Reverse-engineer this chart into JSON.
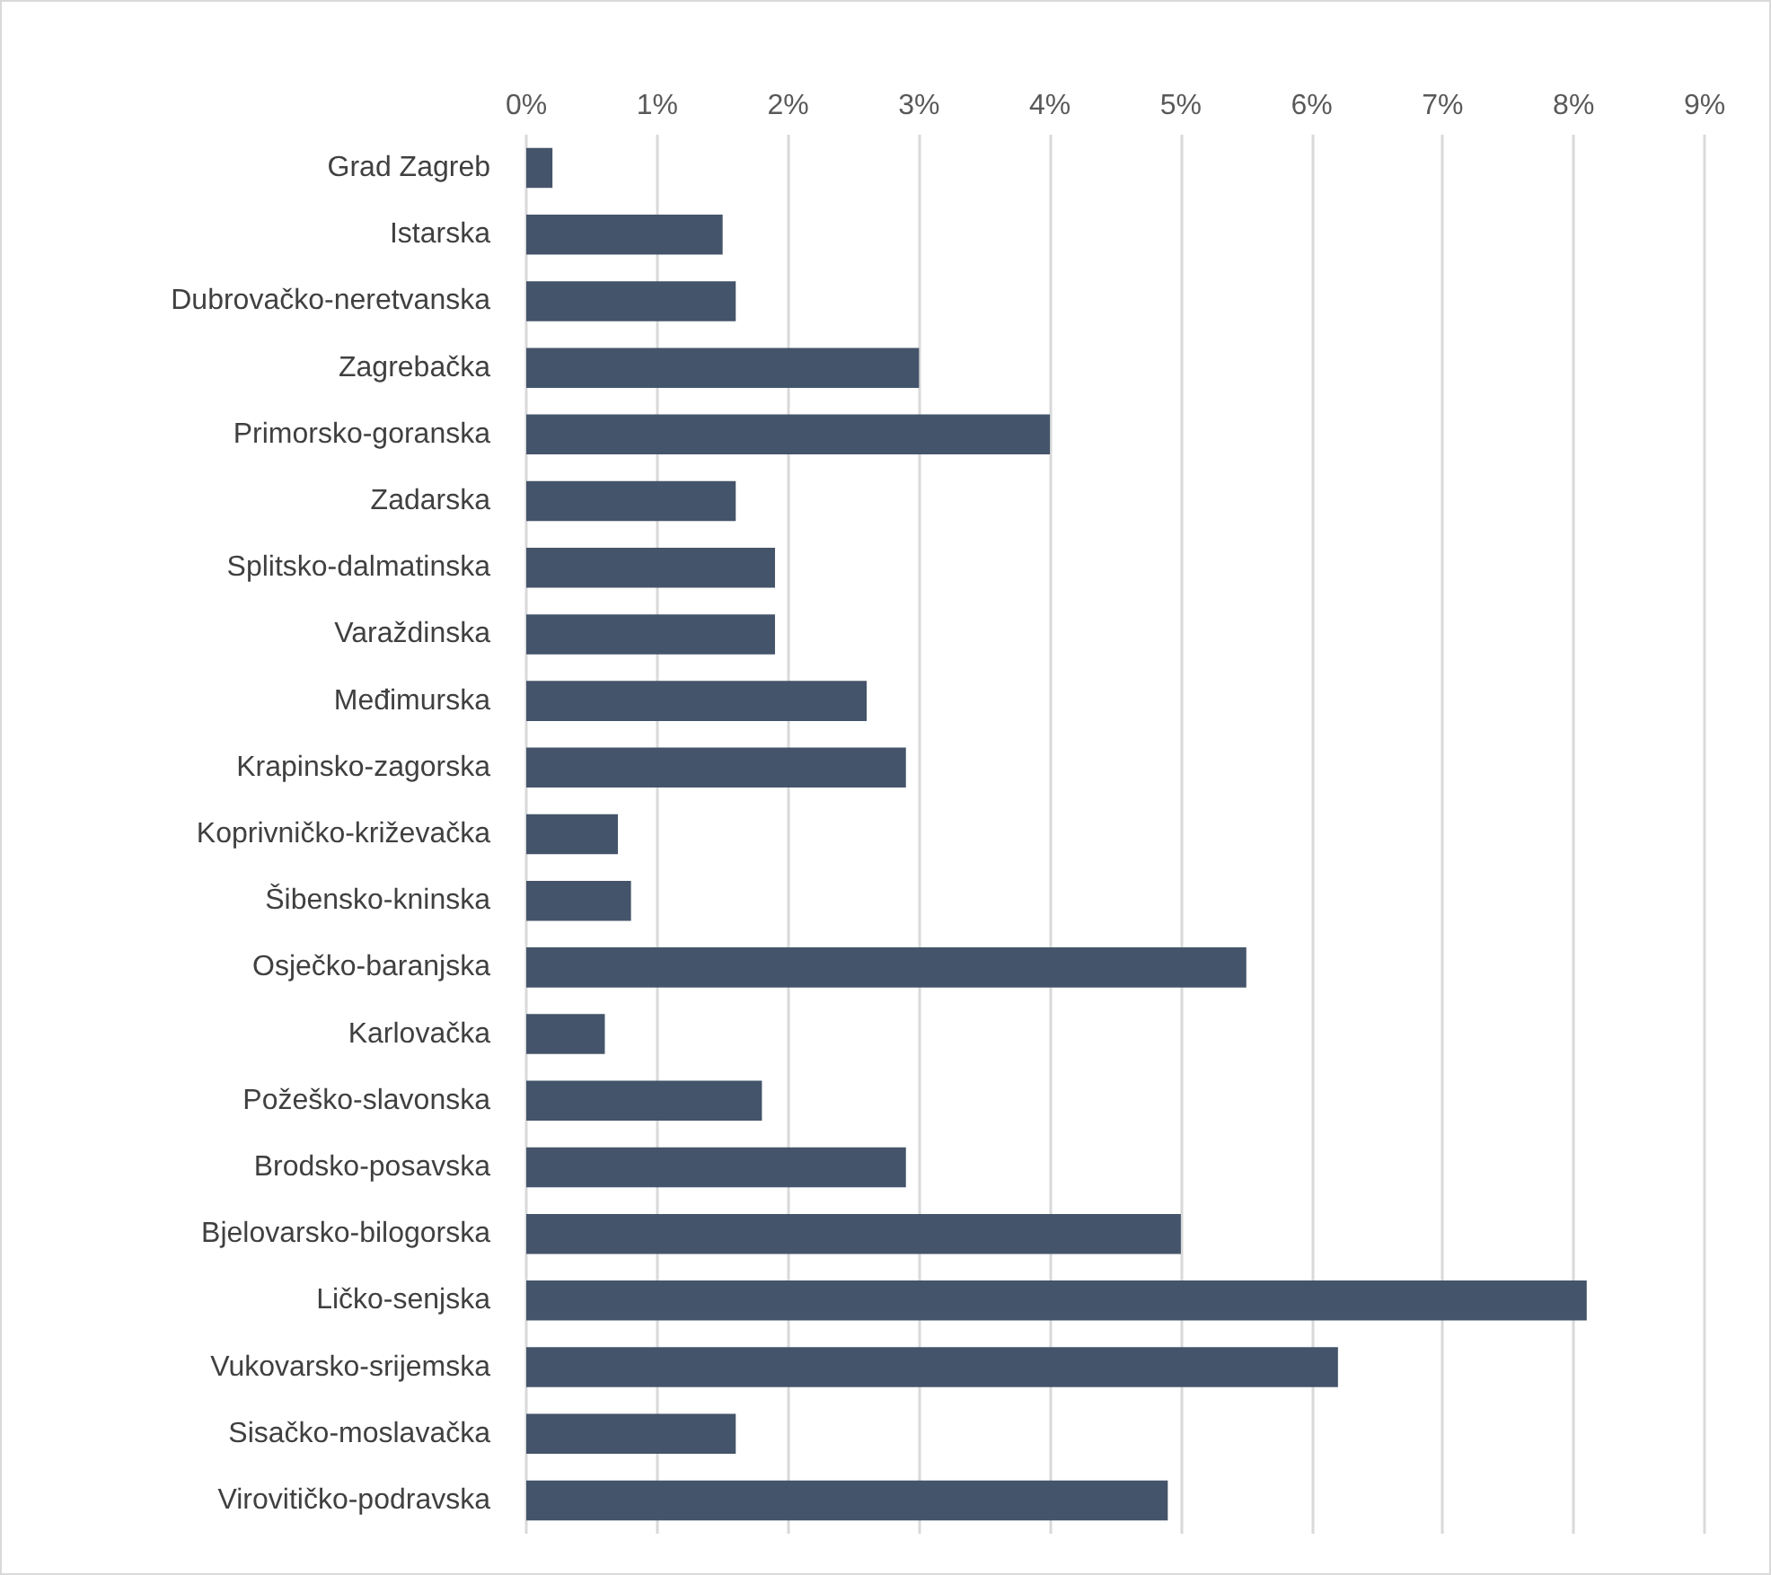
{
  "chart_data": {
    "type": "bar",
    "orientation": "horizontal",
    "categories": [
      "Grad Zagreb",
      "Istarska",
      "Dubrovačko-neretvanska",
      "Zagrebačka",
      "Primorsko-goranska",
      "Zadarska",
      "Splitsko-dalmatinska",
      "Varaždinska",
      "Međimurska",
      "Krapinsko-zagorska",
      "Koprivničko-križevačka",
      "Šibensko-kninska",
      "Osječko-baranjska",
      "Karlovačka",
      "Požeško-slavonska",
      "Brodsko-posavska",
      "Bjelovarsko-bilogorska",
      "Ličko-senjska",
      "Vukovarsko-srijemska",
      "Sisačko-moslavačka",
      "Virovitičko-podravska"
    ],
    "values": [
      0.2,
      1.5,
      1.6,
      3.0,
      4.0,
      1.6,
      1.9,
      1.9,
      2.6,
      2.9,
      0.7,
      0.8,
      5.5,
      0.6,
      1.8,
      2.9,
      5.0,
      8.1,
      6.2,
      1.6,
      4.9
    ],
    "color": "#44546a",
    "xlim": [
      0,
      9
    ],
    "xticks": [
      {
        "value": 0,
        "label": "0%"
      },
      {
        "value": 1,
        "label": "1%"
      },
      {
        "value": 2,
        "label": "2%"
      },
      {
        "value": 3,
        "label": "3%"
      },
      {
        "value": 4,
        "label": "4%"
      },
      {
        "value": 5,
        "label": "5%"
      },
      {
        "value": 6,
        "label": "6%"
      },
      {
        "value": 7,
        "label": "7%"
      },
      {
        "value": 8,
        "label": "8%"
      },
      {
        "value": 9,
        "label": "9%"
      }
    ],
    "grid": "x"
  }
}
